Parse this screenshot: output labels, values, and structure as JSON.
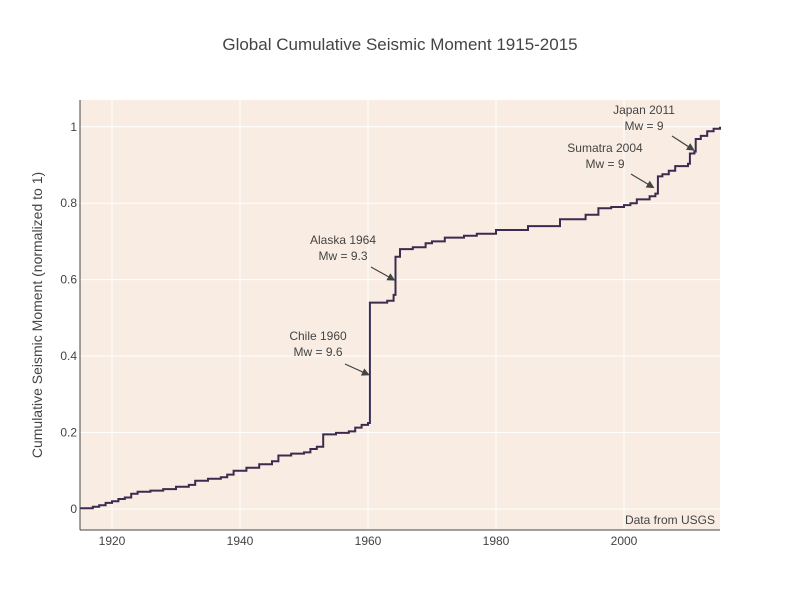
{
  "chart_data": {
    "type": "line",
    "title": "Global Cumulative Seismic Moment 1915-2015",
    "xlabel": "",
    "ylabel": "Cumulative Seismic Moment (normalized to 1)",
    "xlim": [
      1915,
      2015
    ],
    "ylim": [
      -0.055,
      1.07
    ],
    "x_ticks": [
      1920,
      1940,
      1960,
      1980,
      2000
    ],
    "y_ticks": [
      0,
      0.2,
      0.4,
      0.6,
      0.8,
      1
    ],
    "x_tick_labels": [
      "1920",
      "1940",
      "1960",
      "1980",
      "2000"
    ],
    "y_tick_labels": [
      "0",
      "0.2",
      "0.4",
      "0.6",
      "0.8",
      "1"
    ],
    "grid": true,
    "line_color": "#3d2a4f",
    "plot_bgcolor": "#f9ede3",
    "grid_color": "#ffffff",
    "series": [
      {
        "mode": "step",
        "x": [
          1915,
          1917,
          1918,
          1919,
          1920,
          1921,
          1922,
          1923,
          1924,
          1926,
          1928,
          1930,
          1932,
          1933,
          1935,
          1937,
          1938,
          1939,
          1941,
          1943,
          1945,
          1946,
          1948,
          1950,
          1951,
          1952,
          1953,
          1955,
          1957,
          1958,
          1959,
          1960,
          1960.3,
          1963,
          1964,
          1964.3,
          1965,
          1967,
          1969,
          1970,
          1972,
          1975,
          1977,
          1980,
          1985,
          1990,
          1994,
          1996,
          1998,
          2000,
          2001,
          2002,
          2004,
          2004.9,
          2005.3,
          2006,
          2007,
          2008,
          2010,
          2010.3,
          2011,
          2011.2,
          2012,
          2013,
          2014,
          2015
        ],
        "y": [
          0.002,
          0.006,
          0.01,
          0.016,
          0.02,
          0.026,
          0.03,
          0.04,
          0.045,
          0.048,
          0.052,
          0.058,
          0.063,
          0.074,
          0.079,
          0.083,
          0.09,
          0.1,
          0.108,
          0.117,
          0.125,
          0.14,
          0.145,
          0.148,
          0.157,
          0.163,
          0.195,
          0.199,
          0.203,
          0.213,
          0.22,
          0.225,
          0.54,
          0.545,
          0.56,
          0.66,
          0.68,
          0.685,
          0.695,
          0.7,
          0.71,
          0.715,
          0.72,
          0.73,
          0.74,
          0.758,
          0.77,
          0.787,
          0.79,
          0.795,
          0.8,
          0.81,
          0.818,
          0.825,
          0.87,
          0.876,
          0.885,
          0.897,
          0.903,
          0.93,
          0.935,
          0.968,
          0.976,
          0.988,
          0.995,
          1.0
        ]
      }
    ],
    "annotations": [
      {
        "text": [
          "Chile 1960",
          "Mw = 9.6"
        ],
        "x": 1960,
        "y": 0.352
      },
      {
        "text": [
          "Alaska 1964",
          "Mw = 9.3"
        ],
        "x": 1964,
        "y": 0.6
      },
      {
        "text": [
          "Sumatra 2004",
          "Mw = 9"
        ],
        "x": 2004.5,
        "y": 0.842
      },
      {
        "text": [
          "Japan 2011",
          "Mw = 9"
        ],
        "x": 2010.8,
        "y": 0.94
      },
      {
        "text": [
          "Data from USGS"
        ]
      }
    ]
  }
}
